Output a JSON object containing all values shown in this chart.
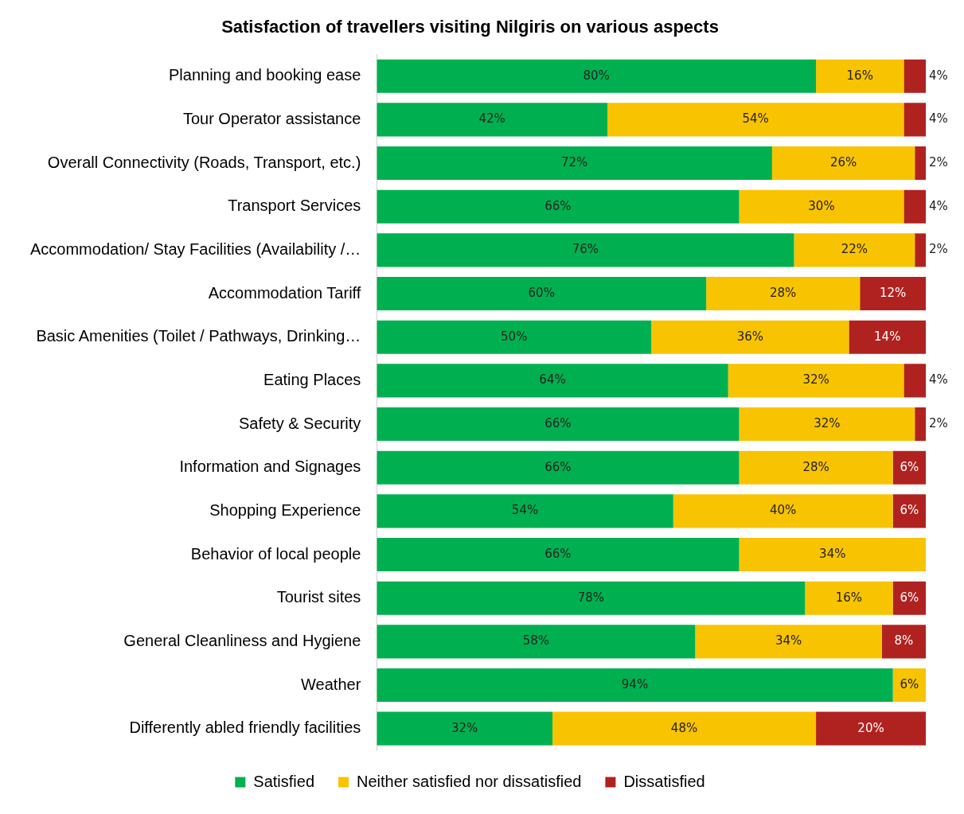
{
  "chart_data": {
    "type": "bar",
    "orientation": "horizontal",
    "stacked": true,
    "title": "Satisfaction of travellers visiting Nilgiris on various aspects",
    "categories": [
      "Planning and booking ease",
      "Tour Operator assistance",
      "Overall Connectivity (Roads, Transport, etc.)",
      "Transport Services",
      "Accommodation/ Stay Facilities (Availability /…",
      "Accommodation Tariff",
      "Basic Amenities (Toilet / Pathways, Drinking…",
      "Eating Places",
      "Safety & Security",
      "Information and Signages",
      "Shopping Experience",
      "Behavior of local people",
      "Tourist sites",
      "General Cleanliness and Hygiene",
      "Weather",
      "Differently abled friendly facilities"
    ],
    "series": [
      {
        "name": "Satisfied",
        "color": "#00b050",
        "values": [
          80,
          42,
          72,
          66,
          76,
          60,
          50,
          64,
          66,
          66,
          54,
          66,
          78,
          58,
          94,
          32
        ],
        "value_labels": [
          "80%",
          "42%",
          "72%",
          "66%",
          "76%",
          "60%",
          "50%",
          "64%",
          "66%",
          "66%",
          "54%",
          "66%",
          "78%",
          "58%",
          "94%",
          "32%"
        ]
      },
      {
        "name": "Neither satisfied nor dissatisfied",
        "color": "#f8c300",
        "values": [
          16,
          54,
          26,
          30,
          22,
          28,
          36,
          32,
          32,
          28,
          40,
          34,
          16,
          34,
          6,
          48
        ],
        "value_labels": [
          "16%",
          "54%",
          "26%",
          "30%",
          "22%",
          "28%",
          "36%",
          "32%",
          "32%",
          "28%",
          "40%",
          "34%",
          "16%",
          "34%",
          "6%",
          "48%"
        ]
      },
      {
        "name": "Dissatisfied",
        "color": "#b0221f",
        "values": [
          4,
          4,
          2,
          4,
          2,
          12,
          14,
          4,
          2,
          6,
          6,
          null,
          6,
          8,
          null,
          20
        ],
        "value_labels": [
          "4%",
          "4%",
          "2%",
          "4%",
          "2%",
          "12%",
          "14%",
          "4%",
          "2%",
          "6%",
          "6%",
          null,
          "6%",
          "8%",
          null,
          "20%"
        ]
      }
    ],
    "xlim": [
      0,
      100
    ],
    "tick_labels": "y",
    "grid": false,
    "legend": "bottom"
  }
}
